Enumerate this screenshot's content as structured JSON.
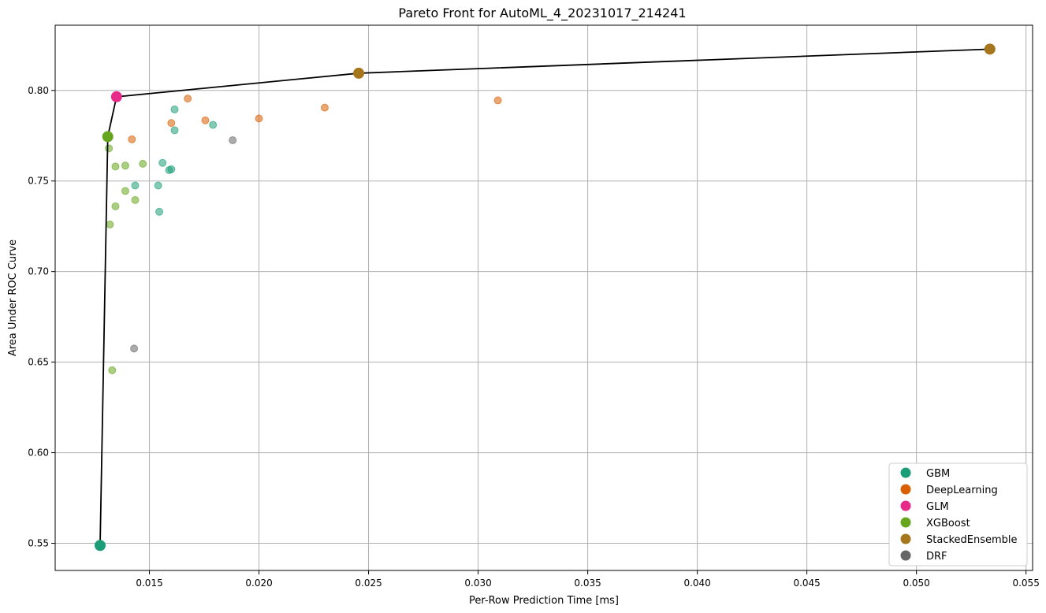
{
  "chart_data": {
    "type": "scatter",
    "title": "Pareto Front for AutoML_4_20231017_214241",
    "xlabel": "Per-Row Prediction Time [ms]",
    "ylabel": "Area Under ROC Curve",
    "xlim": [
      0.0107,
      0.0553
    ],
    "ylim": [
      0.535,
      0.836
    ],
    "xticks": [
      "0.015",
      "0.020",
      "0.025",
      "0.030",
      "0.035",
      "0.040",
      "0.045",
      "0.050",
      "0.055"
    ],
    "xtick_values": [
      0.015,
      0.02,
      0.025,
      0.03,
      0.035,
      0.04,
      0.045,
      0.05,
      0.055
    ],
    "yticks": [
      "0.55",
      "0.60",
      "0.65",
      "0.70",
      "0.75",
      "0.80"
    ],
    "ytick_values": [
      0.55,
      0.6,
      0.65,
      0.7,
      0.75,
      0.8
    ],
    "grid": true,
    "legend_position": "bottom-right",
    "series": [
      {
        "name": "GBM",
        "color": "#1b9e77",
        "points": [
          {
            "x": 0.01615,
            "y": 0.7895
          },
          {
            "x": 0.01615,
            "y": 0.778
          },
          {
            "x": 0.0179,
            "y": 0.781
          },
          {
            "x": 0.0156,
            "y": 0.76
          },
          {
            "x": 0.0159,
            "y": 0.756
          },
          {
            "x": 0.016,
            "y": 0.7565
          },
          {
            "x": 0.01435,
            "y": 0.7475
          },
          {
            "x": 0.0154,
            "y": 0.7475
          },
          {
            "x": 0.01545,
            "y": 0.733
          }
        ]
      },
      {
        "name": "DeepLearning",
        "color": "#d95f02",
        "points": [
          {
            "x": 0.01675,
            "y": 0.7955
          },
          {
            "x": 0.023,
            "y": 0.7905
          },
          {
            "x": 0.0309,
            "y": 0.7945
          },
          {
            "x": 0.016,
            "y": 0.782
          },
          {
            "x": 0.01755,
            "y": 0.7835
          },
          {
            "x": 0.02,
            "y": 0.7845
          },
          {
            "x": 0.0142,
            "y": 0.773
          }
        ]
      },
      {
        "name": "GLM",
        "color": "#e7298a",
        "points": []
      },
      {
        "name": "XGBoost",
        "color": "#66a61e",
        "points": [
          {
            "x": 0.01315,
            "y": 0.768
          },
          {
            "x": 0.01345,
            "y": 0.758
          },
          {
            "x": 0.0139,
            "y": 0.7585
          },
          {
            "x": 0.0147,
            "y": 0.7595
          },
          {
            "x": 0.0139,
            "y": 0.7445
          },
          {
            "x": 0.01435,
            "y": 0.7395
          },
          {
            "x": 0.01345,
            "y": 0.736
          },
          {
            "x": 0.0132,
            "y": 0.726
          },
          {
            "x": 0.0133,
            "y": 0.6455
          }
        ]
      },
      {
        "name": "StackedEnsemble",
        "color": "#a6761d",
        "points": []
      },
      {
        "name": "DRF",
        "color": "#666666",
        "points": [
          {
            "x": 0.0188,
            "y": 0.7725
          },
          {
            "x": 0.0143,
            "y": 0.6575
          }
        ]
      }
    ],
    "pareto_front": [
      {
        "x": 0.01275,
        "y": 0.5488,
        "series": "GBM"
      },
      {
        "x": 0.0131,
        "y": 0.7745,
        "series": "XGBoost"
      },
      {
        "x": 0.0135,
        "y": 0.7965,
        "series": "GLM"
      },
      {
        "x": 0.02455,
        "y": 0.8095,
        "series": "StackedEnsemble"
      },
      {
        "x": 0.05335,
        "y": 0.8228,
        "series": "StackedEnsemble"
      }
    ],
    "pareto_line_color": "#000000"
  }
}
